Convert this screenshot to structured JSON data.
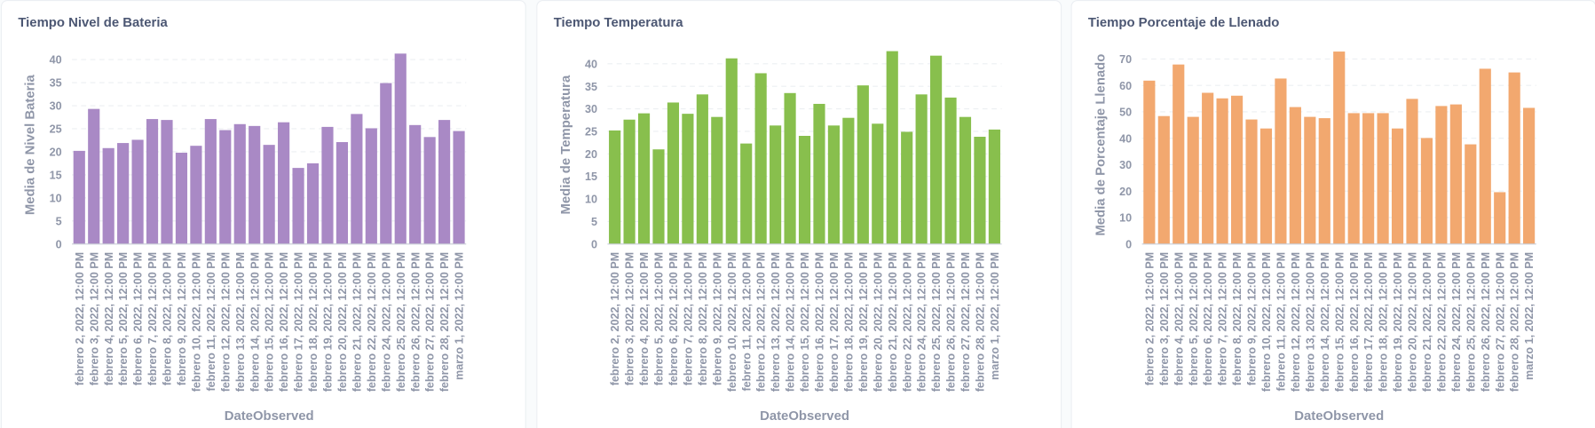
{
  "chart_data": [
    {
      "type": "bar",
      "title": "Tiempo Nivel de Bateria",
      "x_label": "DateObserved",
      "y_label": "Media de Nivel Bateria",
      "color": "#a989c5",
      "grid": true,
      "categories": [
        "febrero 2, 2022, 12:00 PM",
        "febrero 3, 2022, 12:00 PM",
        "febrero 4, 2022, 12:00 PM",
        "febrero 5, 2022, 12:00 PM",
        "febrero 6, 2022, 12:00 PM",
        "febrero 7, 2022, 12:00 PM",
        "febrero 8, 2022, 12:00 PM",
        "febrero 9, 2022, 12:00 PM",
        "febrero 10, 2022, 12:00 PM",
        "febrero 11, 2022, 12:00 PM",
        "febrero 12, 2022, 12:00 PM",
        "febrero 13, 2022, 12:00 PM",
        "febrero 14, 2022, 12:00 PM",
        "febrero 15, 2022, 12:00 PM",
        "febrero 16, 2022, 12:00 PM",
        "febrero 17, 2022, 12:00 PM",
        "febrero 18, 2022, 12:00 PM",
        "febrero 19, 2022, 12:00 PM",
        "febrero 20, 2022, 12:00 PM",
        "febrero 21, 2022, 12:00 PM",
        "febrero 22, 2022, 12:00 PM",
        "febrero 24, 2022, 12:00 PM",
        "febrero 25, 2022, 12:00 PM",
        "febrero 26, 2022, 12:00 PM",
        "febrero 27, 2022, 12:00 PM",
        "febrero 28, 2022, 12:00 PM",
        "marzo 1, 2022, 12:00 PM"
      ],
      "values": [
        20.2,
        29.3,
        20.8,
        21.9,
        22.6,
        27.1,
        26.9,
        19.8,
        21.3,
        27.1,
        24.7,
        26.0,
        25.6,
        21.5,
        26.4,
        16.5,
        17.5,
        25.4,
        22.1,
        28.2,
        25.1,
        34.9,
        41.3,
        25.8,
        23.2,
        26.9,
        24.5
      ],
      "ylim": [
        0,
        43
      ],
      "yticks": [
        0,
        5,
        10,
        15,
        20,
        25,
        30,
        35,
        40
      ]
    },
    {
      "type": "bar",
      "title": "Tiempo Temperatura",
      "x_label": "DateObserved",
      "y_label": "Media de Temperatura",
      "color": "#88bf4d",
      "grid": true,
      "categories": [
        "febrero 2, 2022, 12:00 PM",
        "febrero 3, 2022, 12:00 PM",
        "febrero 4, 2022, 12:00 PM",
        "febrero 5, 2022, 12:00 PM",
        "febrero 6, 2022, 12:00 PM",
        "febrero 7, 2022, 12:00 PM",
        "febrero 8, 2022, 12:00 PM",
        "febrero 9, 2022, 12:00 PM",
        "febrero 10, 2022, 12:00 PM",
        "febrero 11, 2022, 12:00 PM",
        "febrero 12, 2022, 12:00 PM",
        "febrero 13, 2022, 12:00 PM",
        "febrero 14, 2022, 12:00 PM",
        "febrero 15, 2022, 12:00 PM",
        "febrero 16, 2022, 12:00 PM",
        "febrero 17, 2022, 12:00 PM",
        "febrero 18, 2022, 12:00 PM",
        "febrero 19, 2022, 12:00 PM",
        "febrero 20, 2022, 12:00 PM",
        "febrero 21, 2022, 12:00 PM",
        "febrero 22, 2022, 12:00 PM",
        "febrero 24, 2022, 12:00 PM",
        "febrero 25, 2022, 12:00 PM",
        "febrero 26, 2022, 12:00 PM",
        "febrero 27, 2022, 12:00 PM",
        "febrero 28, 2022, 12:00 PM",
        "marzo 1, 2022, 12:00 PM"
      ],
      "values": [
        25.2,
        27.6,
        29.0,
        21.0,
        31.4,
        28.9,
        33.2,
        28.2,
        41.2,
        22.3,
        37.9,
        26.3,
        33.5,
        24.0,
        31.1,
        26.3,
        28.0,
        35.2,
        26.7,
        42.8,
        24.9,
        33.2,
        41.8,
        32.5,
        28.2,
        23.8,
        25.4
      ],
      "ylim": [
        0,
        44
      ],
      "yticks": [
        0,
        5,
        10,
        15,
        20,
        25,
        30,
        35,
        40
      ]
    },
    {
      "type": "bar",
      "title": "Tiempo Porcentaje de Llenado",
      "x_label": "DateObserved",
      "y_label": "Media de Porcentaje Llenado",
      "color": "#f2a86f",
      "grid": true,
      "categories": [
        "febrero 2, 2022, 12:00 PM",
        "febrero 3, 2022, 12:00 PM",
        "febrero 4, 2022, 12:00 PM",
        "febrero 5, 2022, 12:00 PM",
        "febrero 6, 2022, 12:00 PM",
        "febrero 7, 2022, 12:00 PM",
        "febrero 8, 2022, 12:00 PM",
        "febrero 9, 2022, 12:00 PM",
        "febrero 10, 2022, 12:00 PM",
        "febrero 11, 2022, 12:00 PM",
        "febrero 12, 2022, 12:00 PM",
        "febrero 13, 2022, 12:00 PM",
        "febrero 14, 2022, 12:00 PM",
        "febrero 15, 2022, 12:00 PM",
        "febrero 16, 2022, 12:00 PM",
        "febrero 17, 2022, 12:00 PM",
        "febrero 18, 2022, 12:00 PM",
        "febrero 19, 2022, 12:00 PM",
        "febrero 20, 2022, 12:00 PM",
        "febrero 21, 2022, 12:00 PM",
        "febrero 22, 2022, 12:00 PM",
        "febrero 24, 2022, 12:00 PM",
        "febrero 25, 2022, 12:00 PM",
        "febrero 26, 2022, 12:00 PM",
        "febrero 27, 2022, 12:00 PM",
        "febrero 28, 2022, 12:00 PM",
        "marzo 1, 2022, 12:00 PM"
      ],
      "values": [
        61.8,
        48.4,
        67.9,
        48.1,
        57.2,
        55.1,
        56.1,
        47.1,
        43.7,
        62.6,
        51.8,
        48.1,
        47.6,
        72.8,
        49.5,
        49.5,
        49.5,
        43.7,
        54.9,
        40.1,
        52.2,
        52.8,
        37.7,
        66.3,
        19.6,
        64.9,
        51.5
      ],
      "ylim": [
        0,
        75
      ],
      "yticks": [
        0,
        10,
        20,
        30,
        40,
        50,
        60,
        70
      ]
    }
  ]
}
